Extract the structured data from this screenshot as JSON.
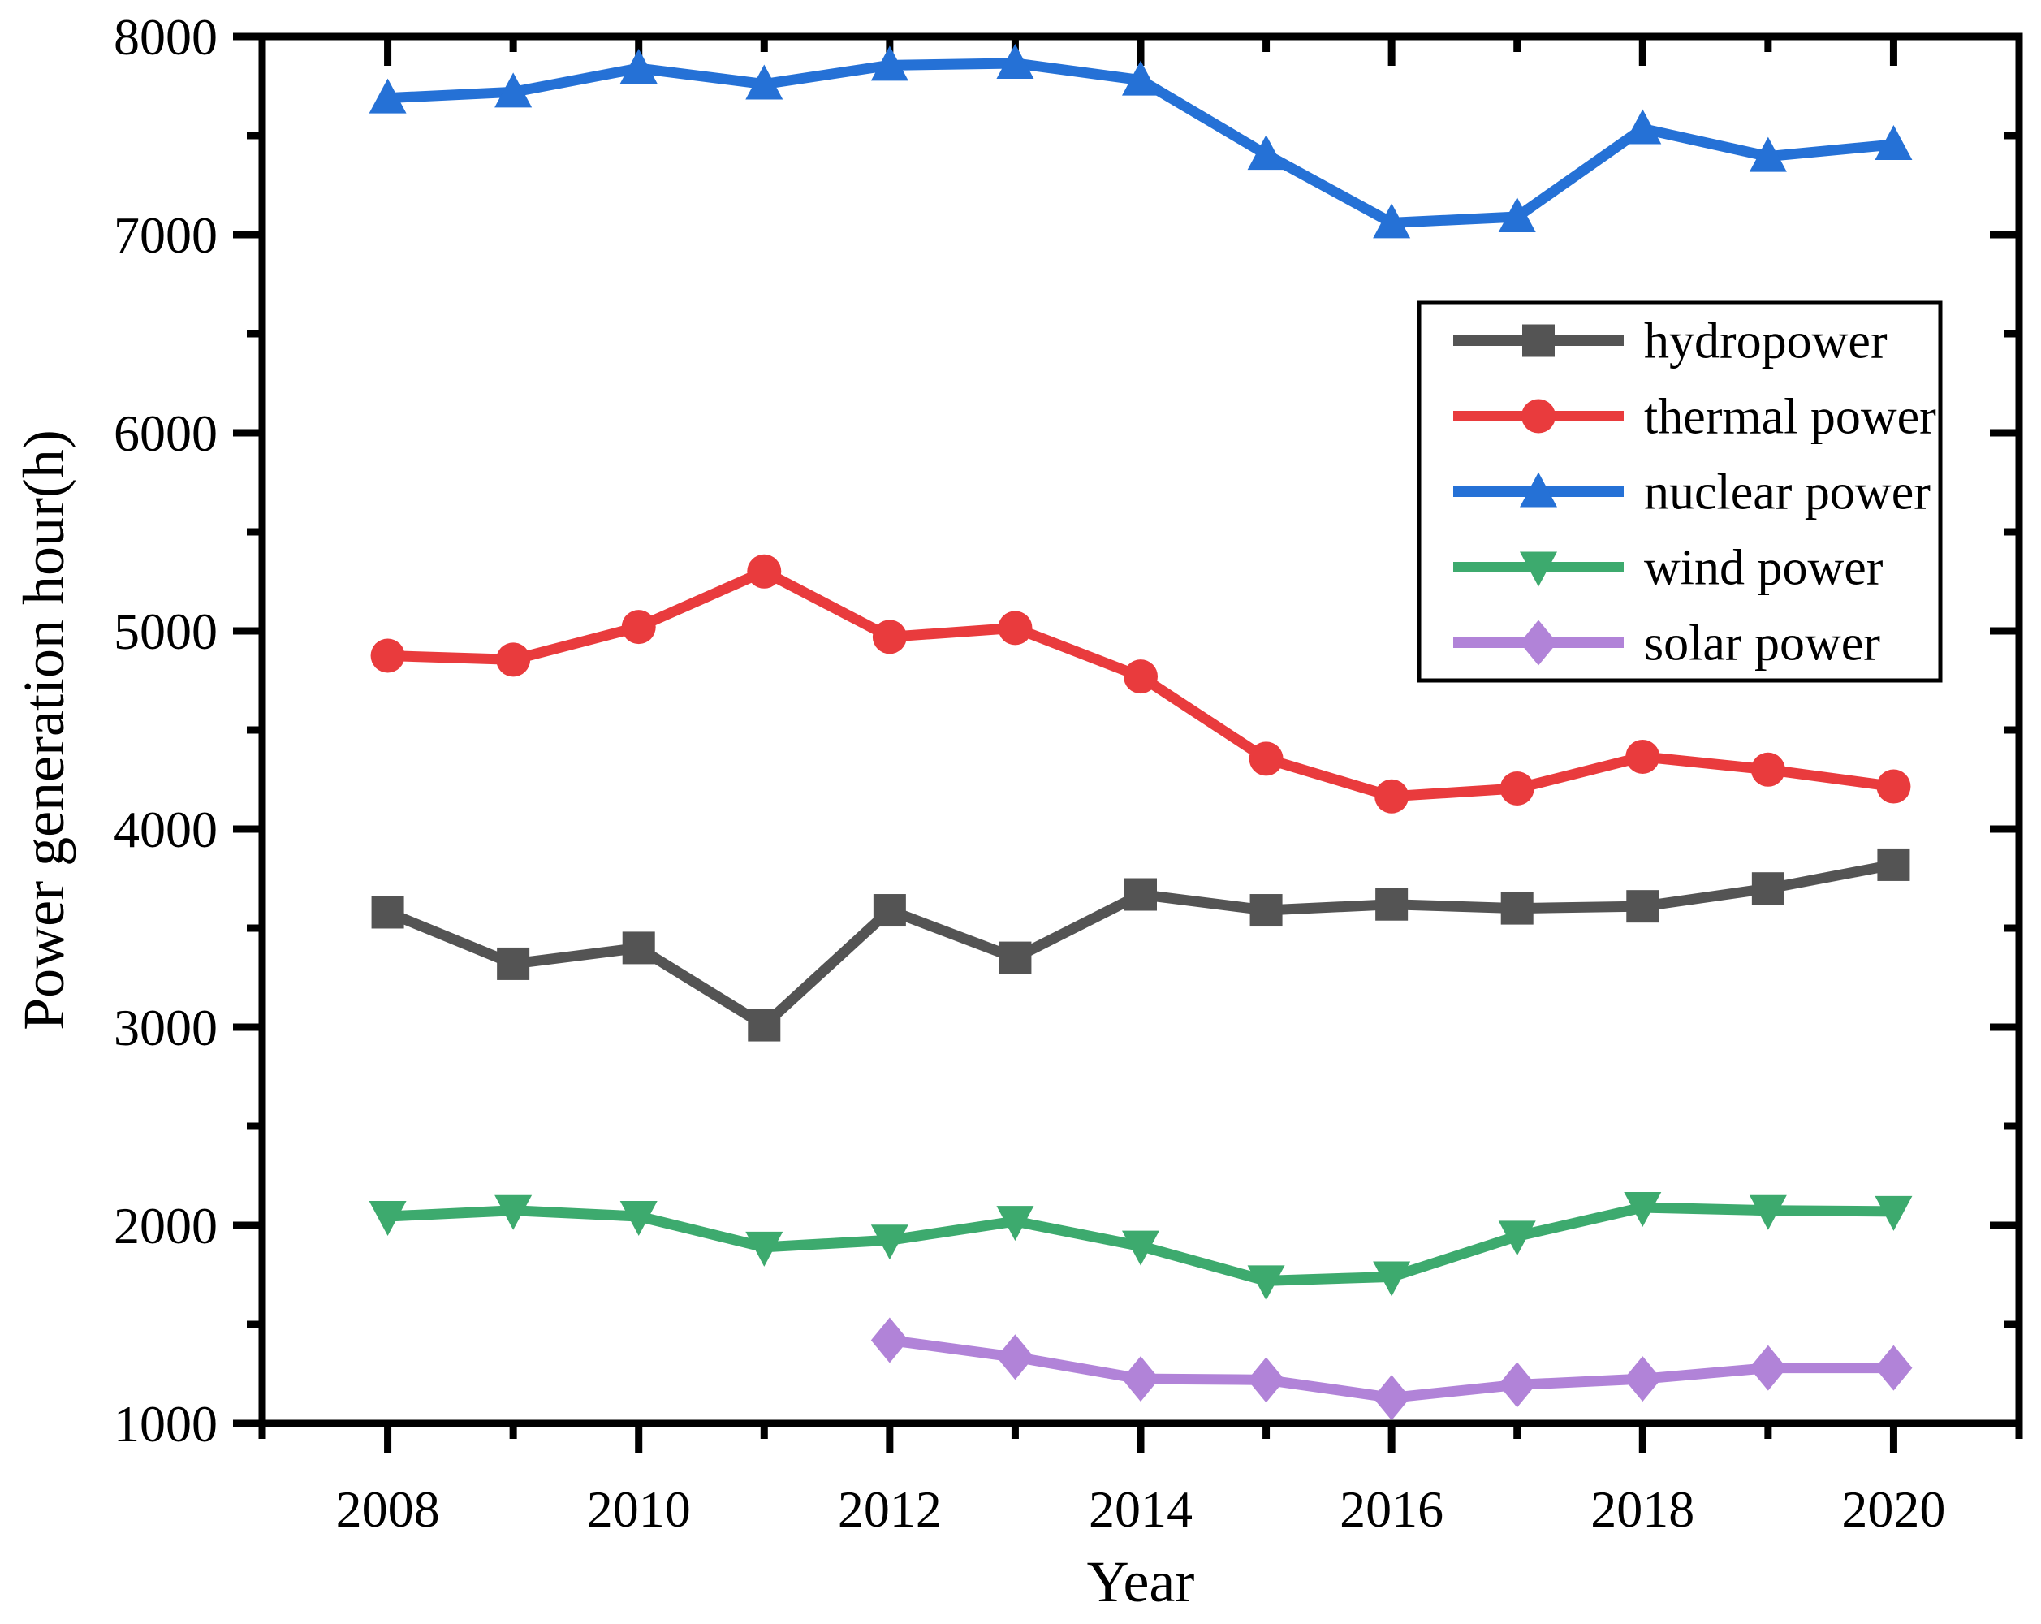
{
  "figure": {
    "background": "#ffffff",
    "border_color": "#000000"
  },
  "chart_data": {
    "type": "line",
    "title": "",
    "xlabel": "Year",
    "ylabel": "Power generation hour(h)",
    "xlim": [
      2007,
      2021
    ],
    "ylim": [
      1000,
      8000
    ],
    "grid": false,
    "legend_position": "upper-right-inside",
    "x_major_ticks": [
      2008,
      2010,
      2012,
      2014,
      2016,
      2018,
      2020
    ],
    "x_tick_labels": [
      "2008",
      "2010",
      "2012",
      "2014",
      "2016",
      "2018",
      "2020"
    ],
    "x_minor_ticks": [
      2007,
      2009,
      2011,
      2013,
      2015,
      2017,
      2019,
      2021
    ],
    "y_major_ticks": [
      1000,
      2000,
      3000,
      4000,
      5000,
      6000,
      7000,
      8000
    ],
    "y_tick_labels": [
      "1000",
      "2000",
      "3000",
      "4000",
      "5000",
      "6000",
      "7000",
      "8000"
    ],
    "y_minor_ticks": [
      1500,
      2500,
      3500,
      4500,
      5500,
      6500,
      7500
    ],
    "series": [
      {
        "name": "hydropower",
        "color": "#545454",
        "marker": "square",
        "x": [
          2008,
          2009,
          2010,
          2011,
          2012,
          2013,
          2014,
          2015,
          2016,
          2017,
          2018,
          2019,
          2020
        ],
        "values": [
          3580,
          3320,
          3400,
          3010,
          3590,
          3350,
          3670,
          3590,
          3620,
          3600,
          3610,
          3700,
          3820
        ]
      },
      {
        "name": "thermal power",
        "color": "#e93b3d",
        "marker": "circle",
        "x": [
          2008,
          2009,
          2010,
          2011,
          2012,
          2013,
          2014,
          2015,
          2016,
          2017,
          2018,
          2019,
          2020
        ],
        "values": [
          4875,
          4855,
          5020,
          5300,
          4970,
          5015,
          4770,
          4355,
          4165,
          4205,
          4365,
          4300,
          4215
        ]
      },
      {
        "name": "nuclear power",
        "color": "#2571d6",
        "marker": "triangle-up",
        "x": [
          2008,
          2009,
          2010,
          2011,
          2012,
          2013,
          2014,
          2015,
          2016,
          2017,
          2018,
          2019,
          2020
        ],
        "values": [
          7690,
          7720,
          7840,
          7760,
          7855,
          7865,
          7780,
          7405,
          7060,
          7090,
          7535,
          7395,
          7455
        ]
      },
      {
        "name": "wind power",
        "color": "#3daa6e",
        "marker": "triangle-down",
        "x": [
          2008,
          2009,
          2010,
          2011,
          2012,
          2013,
          2014,
          2015,
          2016,
          2017,
          2018,
          2019,
          2020
        ],
        "values": [
          2045,
          2075,
          2045,
          1890,
          1925,
          2020,
          1895,
          1720,
          1740,
          1945,
          2090,
          2075,
          2070
        ]
      },
      {
        "name": "solar power",
        "color": "#b183d8",
        "marker": "diamond",
        "x": [
          2012,
          2013,
          2014,
          2015,
          2016,
          2017,
          2018,
          2019,
          2020
        ],
        "values": [
          1420,
          1335,
          1225,
          1220,
          1130,
          1195,
          1225,
          1280,
          1280
        ]
      }
    ]
  }
}
